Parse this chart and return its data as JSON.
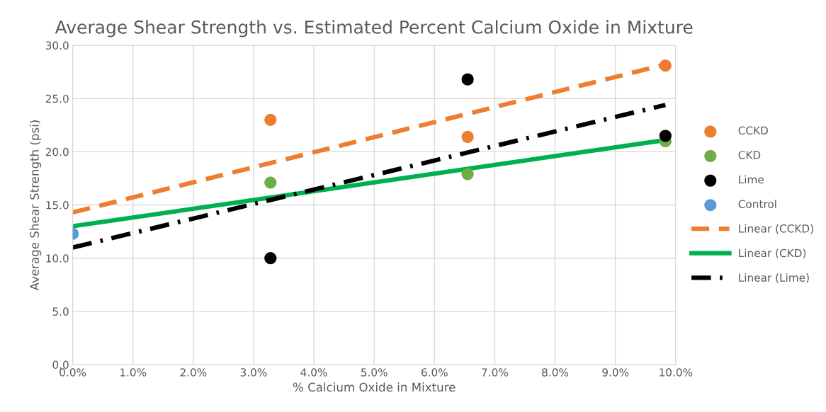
{
  "chart_data": {
    "type": "scatter",
    "title": "Average Shear Strength vs. Estimated Percent Calcium Oxide in Mixture",
    "xlabel": "% Calcium Oxide in Mixture",
    "ylabel": "Average Shear Strength (psi)",
    "xlim": [
      0,
      10
    ],
    "ylim": [
      0,
      30
    ],
    "xticks": [
      {
        "value": 0,
        "label": "0.0%"
      },
      {
        "value": 1,
        "label": "1.0%"
      },
      {
        "value": 2,
        "label": "2.0%"
      },
      {
        "value": 3,
        "label": "3.0%"
      },
      {
        "value": 4,
        "label": "4.0%"
      },
      {
        "value": 5,
        "label": "5.0%"
      },
      {
        "value": 6,
        "label": "6.0%"
      },
      {
        "value": 7,
        "label": "7.0%"
      },
      {
        "value": 8,
        "label": "8.0%"
      },
      {
        "value": 9,
        "label": "9.0%"
      },
      {
        "value": 10,
        "label": "10.0%"
      }
    ],
    "yticks": [
      {
        "value": 0,
        "label": "0.0"
      },
      {
        "value": 5,
        "label": "5.0"
      },
      {
        "value": 10,
        "label": "10.0"
      },
      {
        "value": 15,
        "label": "15.0"
      },
      {
        "value": 20,
        "label": "20.0"
      },
      {
        "value": 25,
        "label": "25.0"
      },
      {
        "value": 30,
        "label": "30.0"
      }
    ],
    "grid": true,
    "legend": "right",
    "marker": "circle",
    "series": [
      {
        "name": "CCKD",
        "color": "#ed7d31",
        "x": [
          3.28,
          6.55,
          9.83
        ],
        "values": [
          23.0,
          21.4,
          28.1
        ]
      },
      {
        "name": "CKD",
        "color": "#70ad47",
        "x": [
          3.28,
          6.55,
          9.83
        ],
        "values": [
          17.1,
          17.9,
          21.0
        ]
      },
      {
        "name": "Lime",
        "color": "#000000",
        "x": [
          3.28,
          6.55,
          9.83
        ],
        "values": [
          10.0,
          26.8,
          21.5
        ]
      },
      {
        "name": "Control",
        "color": "#5b9bd5",
        "x": [
          0
        ],
        "values": [
          12.3
        ]
      },
      {
        "name": "Linear (CCKD)",
        "type": "line",
        "marker": "none",
        "color": "#ed7d31",
        "line_style": "dashed",
        "x": [
          0,
          9.83
        ],
        "values": [
          14.3,
          28.2
        ]
      },
      {
        "name": "Linear (CKD)",
        "type": "line",
        "marker": "none",
        "color": "#00b050",
        "line_style": "solid",
        "x": [
          0,
          9.83
        ],
        "values": [
          13.0,
          21.1
        ]
      },
      {
        "name": "Linear (Lime)",
        "type": "line",
        "marker": "none",
        "color": "#000000",
        "line_style": "dashdot",
        "x": [
          0,
          9.83
        ],
        "values": [
          11.0,
          24.4
        ]
      }
    ]
  }
}
